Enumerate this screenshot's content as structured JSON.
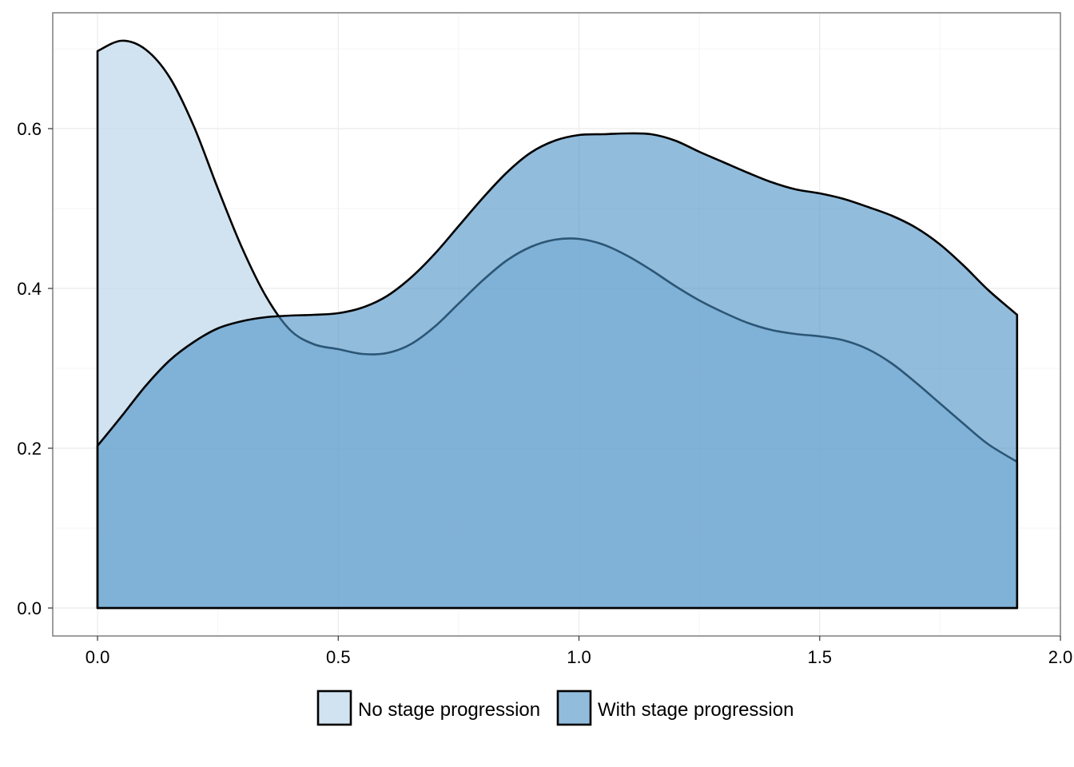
{
  "chart_data": {
    "type": "area",
    "subtype": "density",
    "title": "",
    "xlabel": "",
    "ylabel": "",
    "xlim": [
      -0.093,
      2.0
    ],
    "ylim": [
      -0.035,
      0.745
    ],
    "x_ticks": [
      0.0,
      0.5,
      1.0,
      1.5,
      2.0
    ],
    "x_tick_labels": [
      "0.0",
      "0.5",
      "1.0",
      "1.5",
      "2.0"
    ],
    "y_ticks": [
      0.0,
      0.2,
      0.4,
      0.6
    ],
    "y_tick_labels": [
      "0.0",
      "0.2",
      "0.4",
      "0.6"
    ],
    "grid": true,
    "legend_position": "bottom",
    "colors": {
      "panel_border": "#7f7f7f",
      "grid_major": "#ebebeb",
      "grid_minor": "#f5f5f5",
      "outline": "#000000"
    },
    "series": [
      {
        "name": "No stage progression",
        "fill": "#c6dcec",
        "opacity": 0.8,
        "x": [
          0.0,
          0.05,
          0.1,
          0.15,
          0.2,
          0.25,
          0.3,
          0.35,
          0.4,
          0.45,
          0.5,
          0.55,
          0.6,
          0.65,
          0.7,
          0.75,
          0.8,
          0.85,
          0.9,
          0.95,
          1.0,
          1.05,
          1.1,
          1.15,
          1.2,
          1.25,
          1.3,
          1.35,
          1.4,
          1.45,
          1.5,
          1.55,
          1.6,
          1.65,
          1.7,
          1.75,
          1.8,
          1.85,
          1.91
        ],
        "values": [
          0.697,
          0.71,
          0.699,
          0.664,
          0.603,
          0.525,
          0.451,
          0.39,
          0.348,
          0.33,
          0.324,
          0.318,
          0.319,
          0.33,
          0.352,
          0.381,
          0.41,
          0.435,
          0.452,
          0.461,
          0.462,
          0.455,
          0.441,
          0.423,
          0.403,
          0.385,
          0.37,
          0.357,
          0.348,
          0.343,
          0.34,
          0.335,
          0.324,
          0.306,
          0.282,
          0.256,
          0.23,
          0.205,
          0.183
        ]
      },
      {
        "name": "With stage progression",
        "fill": "#4a90c4",
        "opacity": 0.6,
        "x": [
          0.0,
          0.05,
          0.1,
          0.15,
          0.2,
          0.25,
          0.3,
          0.35,
          0.4,
          0.45,
          0.5,
          0.55,
          0.6,
          0.65,
          0.7,
          0.75,
          0.8,
          0.85,
          0.9,
          0.95,
          1.0,
          1.05,
          1.1,
          1.15,
          1.2,
          1.25,
          1.3,
          1.35,
          1.4,
          1.45,
          1.5,
          1.55,
          1.6,
          1.65,
          1.7,
          1.75,
          1.8,
          1.85,
          1.91
        ],
        "values": [
          0.203,
          0.24,
          0.278,
          0.31,
          0.333,
          0.35,
          0.359,
          0.364,
          0.366,
          0.367,
          0.369,
          0.376,
          0.39,
          0.413,
          0.443,
          0.478,
          0.513,
          0.545,
          0.57,
          0.585,
          0.592,
          0.593,
          0.594,
          0.593,
          0.585,
          0.571,
          0.558,
          0.545,
          0.533,
          0.524,
          0.519,
          0.512,
          0.502,
          0.491,
          0.476,
          0.455,
          0.428,
          0.398,
          0.367
        ]
      }
    ]
  }
}
